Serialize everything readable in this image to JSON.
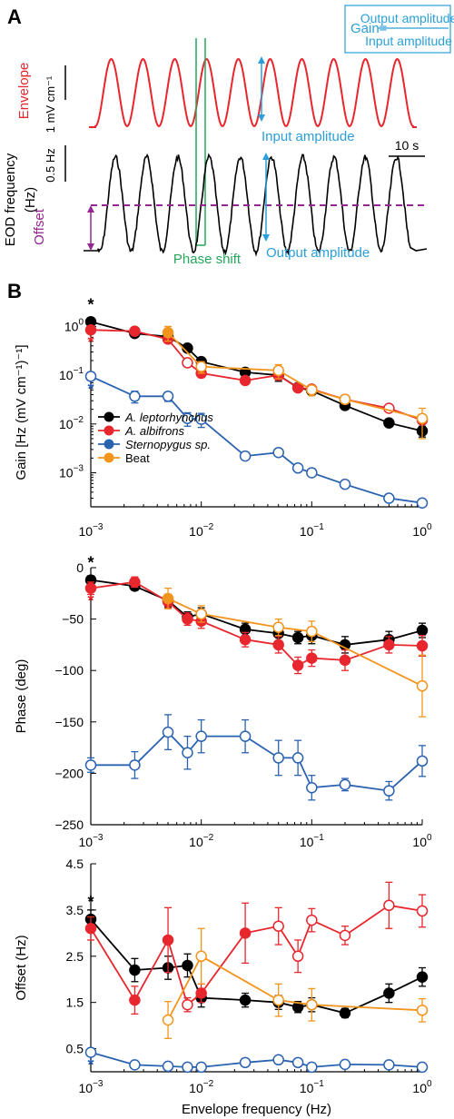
{
  "panel_a": {
    "label": "A",
    "gain_word": "Gain=",
    "gain_num": "Output amplitude",
    "gain_den": "Input amplitude",
    "envelope_label": "Envelope",
    "envelope_scale": "1 mV cm⁻¹",
    "eod_label_1": "EOD frequency",
    "eod_label_2": "(Hz)",
    "eod_scale": "0.5 Hz",
    "time_scale": "10 s",
    "input_amplitude": "Input amplitude",
    "output_amplitude": "Output amplitude",
    "phase_shift": "Phase shift",
    "offset": "Offset",
    "colors": {
      "envelope": "#e8262d",
      "annotation": "#2a9fd8",
      "phase": "#26a65b",
      "offset": "#93278f",
      "eod": "#000000"
    }
  },
  "panel_b": {
    "label": "B"
  },
  "legend": {
    "entries": [
      "A. leptorhynchus",
      "A. albifrons",
      "Sternopygus sp.",
      "Beat"
    ]
  },
  "chart_data": [
    {
      "type": "line",
      "id": "gain",
      "ylabel": "Gain [Hz (mV cm⁻¹)⁻¹]",
      "yscale": "log",
      "ylim": [
        0.0002,
        1.5
      ],
      "xscale": "log",
      "xlim": [
        0.001,
        1
      ],
      "yticks": [
        {
          "v": 1,
          "base": "10",
          "exp": "0"
        },
        {
          "v": 0.1,
          "base": "10",
          "exp": "−1"
        },
        {
          "v": 0.01,
          "base": "10",
          "exp": "−2"
        },
        {
          "v": 0.001,
          "base": "10",
          "exp": "−3"
        }
      ],
      "xticks": [
        {
          "v": 0.001,
          "base": "10",
          "exp": "−3"
        },
        {
          "v": 0.01,
          "base": "10",
          "exp": "−2"
        },
        {
          "v": 0.1,
          "base": "10",
          "exp": "−1"
        },
        {
          "v": 1,
          "base": "10",
          "exp": "0"
        }
      ],
      "stars": [
        {
          "series": 0,
          "text": "*"
        },
        {
          "series": 1,
          "text": "*"
        },
        {
          "series": 2,
          "text": "*"
        }
      ],
      "series": [
        {
          "name": "A. leptorhynchus",
          "color": "#000000",
          "x": [
            0.001,
            0.0025,
            0.005,
            0.0075,
            0.01,
            0.025,
            0.05,
            0.075,
            0.1,
            0.2,
            0.5,
            1
          ],
          "y": [
            1.25,
            0.72,
            0.62,
            0.36,
            0.19,
            0.115,
            0.1,
            0.056,
            0.048,
            0.024,
            0.0105,
            0.0072
          ],
          "open": [
            false,
            false,
            false,
            false,
            false,
            false,
            false,
            false,
            false,
            false,
            false,
            false
          ],
          "err": [
            0.15,
            0.06,
            0.1,
            0.05,
            0.03,
            0.015,
            0.025,
            0.008,
            0.006,
            0.003,
            0.0012,
            0.0018
          ]
        },
        {
          "name": "A. albifrons",
          "color": "#e8262d",
          "x": [
            0.001,
            0.0025,
            0.005,
            0.0075,
            0.01,
            0.025,
            0.05,
            0.075,
            0.1,
            0.2,
            0.5,
            1
          ],
          "y": [
            0.85,
            0.8,
            0.55,
            0.18,
            0.11,
            0.078,
            0.1,
            0.055,
            0.052,
            0.032,
            0.021,
            0.012
          ],
          "open": [
            false,
            false,
            false,
            true,
            false,
            false,
            false,
            false,
            false,
            false,
            true,
            false
          ],
          "err": [
            0.12,
            0.08,
            0.08,
            0.03,
            0.02,
            0.01,
            0.02,
            0.008,
            0.008,
            0.004,
            0.003,
            0.002
          ]
        },
        {
          "name": "Sternopygus sp.",
          "color": "#2a62b0",
          "x": [
            0.001,
            0.0025,
            0.005,
            0.0075,
            0.01,
            0.025,
            0.05,
            0.075,
            0.1,
            0.2,
            0.5,
            1
          ],
          "y": [
            0.095,
            0.037,
            0.037,
            0.013,
            0.0125,
            0.0022,
            0.0026,
            0.00125,
            0.001,
            0.00058,
            0.0003,
            0.00024
          ],
          "open": [
            true,
            true,
            true,
            true,
            true,
            true,
            true,
            true,
            true,
            true,
            true,
            true
          ],
          "err": [
            0.015,
            0.01,
            0.008,
            0.004,
            0.004,
            0.0002,
            0.0002,
            0.0001,
            0.0001,
            5e-05,
            3e-05,
            3e-05
          ]
        },
        {
          "name": "Beat",
          "color": "#f3941c",
          "x": [
            0.005,
            0.01,
            0.05,
            0.1,
            0.2,
            1
          ],
          "y": [
            0.75,
            0.15,
            0.125,
            0.05,
            0.032,
            0.013
          ],
          "open": [
            false,
            true,
            true,
            true,
            true,
            true
          ],
          "err": [
            0.25,
            0.04,
            0.04,
            0.012,
            0.006,
            0.008
          ]
        }
      ]
    },
    {
      "type": "line",
      "id": "phase",
      "ylabel": "Phase (deg)",
      "yscale": "linear",
      "ylim": [
        -250,
        0
      ],
      "xscale": "log",
      "xlim": [
        0.001,
        1
      ],
      "yticks": [
        {
          "v": 0,
          "label": "0"
        },
        {
          "v": -50,
          "label": "−50"
        },
        {
          "v": -100,
          "label": "−100"
        },
        {
          "v": -150,
          "label": "−150"
        },
        {
          "v": -200,
          "label": "−200"
        },
        {
          "v": -250,
          "label": "−250"
        }
      ],
      "xticks": [
        {
          "v": 0.001,
          "base": "10",
          "exp": "−3"
        },
        {
          "v": 0.01,
          "base": "10",
          "exp": "−2"
        },
        {
          "v": 0.1,
          "base": "10",
          "exp": "−1"
        },
        {
          "v": 1,
          "base": "10",
          "exp": "0"
        }
      ],
      "stars": [
        {
          "series": 0,
          "text": "*"
        },
        {
          "series": 1,
          "text": "*"
        }
      ],
      "series": [
        {
          "name": "A. leptorhynchus",
          "color": "#000000",
          "x": [
            0.001,
            0.0025,
            0.005,
            0.0075,
            0.01,
            0.025,
            0.05,
            0.075,
            0.1,
            0.2,
            0.5,
            1
          ],
          "y": [
            -12,
            -18,
            -32,
            -48,
            -45,
            -60,
            -64,
            -68,
            -66,
            -75,
            -70,
            -61
          ],
          "open": [
            false,
            false,
            false,
            false,
            false,
            false,
            false,
            false,
            false,
            false,
            false,
            false
          ],
          "err": [
            4,
            4,
            6,
            5,
            6,
            6,
            7,
            6,
            8,
            8,
            8,
            7
          ]
        },
        {
          "name": "A. albifrons",
          "color": "#e8262d",
          "x": [
            0.001,
            0.0025,
            0.005,
            0.0075,
            0.01,
            0.025,
            0.05,
            0.075,
            0.1,
            0.2,
            0.5,
            1
          ],
          "y": [
            -20,
            -14,
            -33,
            -50,
            -52,
            -70,
            -75,
            -95,
            -88,
            -90,
            -75,
            -76
          ],
          "open": [
            false,
            false,
            false,
            false,
            false,
            false,
            false,
            false,
            false,
            false,
            false,
            false
          ],
          "err": [
            6,
            5,
            6,
            6,
            7,
            7,
            8,
            8,
            8,
            10,
            8,
            10
          ]
        },
        {
          "name": "Sternopygus sp.",
          "color": "#2a62b0",
          "x": [
            0.001,
            0.0025,
            0.005,
            0.0075,
            0.01,
            0.025,
            0.05,
            0.075,
            0.1,
            0.2,
            0.5,
            1
          ],
          "y": [
            -192,
            -192,
            -160,
            -180,
            -164,
            -164,
            -185,
            -185,
            -214,
            -211,
            -217,
            -188
          ],
          "open": [
            true,
            true,
            true,
            true,
            true,
            true,
            true,
            true,
            true,
            true,
            true,
            true
          ],
          "err": [
            7,
            13,
            17,
            16,
            16,
            16,
            17,
            17,
            12,
            6,
            9,
            15
          ]
        },
        {
          "name": "Beat",
          "color": "#f3941c",
          "x": [
            0.005,
            0.01,
            0.05,
            0.1,
            1
          ],
          "y": [
            -30,
            -45,
            -58,
            -62,
            -115
          ],
          "open": [
            false,
            true,
            true,
            true,
            true
          ],
          "err": [
            10,
            8,
            8,
            10,
            30
          ]
        }
      ]
    },
    {
      "type": "line",
      "id": "offset",
      "ylabel": "Offset (Hz)",
      "xlabel": "Envelope frequency (Hz)",
      "yscale": "linear",
      "ylim": [
        0,
        4.5
      ],
      "xscale": "log",
      "xlim": [
        0.001,
        1
      ],
      "yticks": [
        {
          "v": 4.5,
          "label": "4.5"
        },
        {
          "v": 3.5,
          "label": "3.5"
        },
        {
          "v": 2.5,
          "label": "2.5"
        },
        {
          "v": 1.5,
          "label": "1.5"
        },
        {
          "v": 0.5,
          "label": "0.5"
        }
      ],
      "xticks": [
        {
          "v": 0.001,
          "base": "10",
          "exp": "−3"
        },
        {
          "v": 0.01,
          "base": "10",
          "exp": "−2"
        },
        {
          "v": 0.1,
          "base": "10",
          "exp": "−1"
        },
        {
          "v": 1,
          "base": "10",
          "exp": "0"
        }
      ],
      "stars": [
        {
          "series": 0,
          "text": "*"
        },
        {
          "series": 2,
          "text": "*"
        }
      ],
      "series": [
        {
          "name": "A. leptorhynchus",
          "color": "#000000",
          "x": [
            0.001,
            0.0025,
            0.005,
            0.0075,
            0.01,
            0.025,
            0.05,
            0.075,
            0.1,
            0.2,
            0.5,
            1
          ],
          "y": [
            3.3,
            2.2,
            2.25,
            2.3,
            1.6,
            1.55,
            1.5,
            1.4,
            1.45,
            1.27,
            1.7,
            2.05
          ],
          "open": [
            false,
            false,
            false,
            false,
            false,
            false,
            false,
            false,
            false,
            false,
            false,
            false
          ],
          "err": [
            0.2,
            0.25,
            0.25,
            0.25,
            0.2,
            0.15,
            0.15,
            0.12,
            0.15,
            0.1,
            0.2,
            0.2
          ]
        },
        {
          "name": "A. albifrons",
          "color": "#e8262d",
          "x": [
            0.001,
            0.0025,
            0.005,
            0.0075,
            0.01,
            0.025,
            0.05,
            0.075,
            0.1,
            0.2,
            0.5,
            1
          ],
          "y": [
            3.1,
            1.55,
            2.85,
            1.45,
            1.7,
            3.0,
            3.15,
            2.5,
            3.28,
            2.95,
            3.6,
            3.48
          ],
          "open": [
            false,
            false,
            false,
            true,
            false,
            false,
            true,
            true,
            true,
            true,
            true,
            true
          ],
          "err": [
            0.25,
            0.3,
            0.7,
            0.15,
            0.2,
            0.65,
            0.4,
            0.35,
            0.25,
            0.2,
            0.5,
            0.35
          ]
        },
        {
          "name": "Sternopygus sp.",
          "color": "#2a62b0",
          "x": [
            0.001,
            0.0025,
            0.005,
            0.0075,
            0.01,
            0.025,
            0.05,
            0.075,
            0.1,
            0.2,
            0.5,
            1
          ],
          "y": [
            0.42,
            0.15,
            0.12,
            0.1,
            0.1,
            0.2,
            0.26,
            0.2,
            0.1,
            0.16,
            0.15,
            0.1
          ],
          "open": [
            true,
            true,
            true,
            true,
            true,
            true,
            true,
            true,
            true,
            true,
            true,
            true
          ],
          "err": [
            0.05,
            0.03,
            0.03,
            0.03,
            0.03,
            0.04,
            0.05,
            0.05,
            0.03,
            0.03,
            0.03,
            0.03
          ]
        },
        {
          "name": "Beat",
          "color": "#f3941c",
          "x": [
            0.005,
            0.01,
            0.05,
            0.1,
            1
          ],
          "y": [
            1.12,
            2.5,
            1.55,
            1.45,
            1.33
          ],
          "open": [
            true,
            true,
            true,
            true,
            true
          ],
          "err": [
            0.4,
            0.6,
            0.35,
            0.35,
            0.25
          ]
        }
      ]
    }
  ]
}
